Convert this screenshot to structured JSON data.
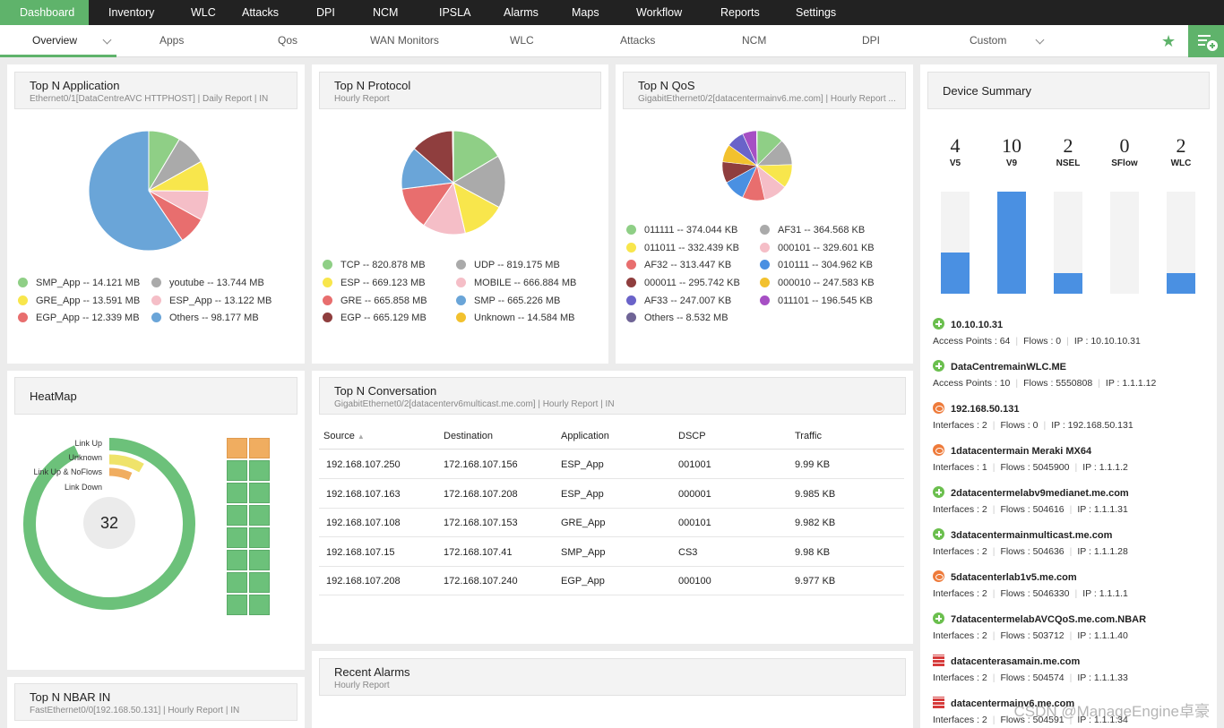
{
  "topnav": [
    "Dashboard",
    "Inventory",
    "WLC",
    "Attacks",
    "DPI",
    "NCM",
    "IPSLA",
    "Alarms",
    "Maps",
    "Workflow",
    "Reports",
    "Settings"
  ],
  "subnav": [
    "Overview",
    "Apps",
    "Qos",
    "WAN Monitors",
    "WLC",
    "Attacks",
    "NCM",
    "DPI",
    "Custom"
  ],
  "colors": {
    "accent": "#5fb36b",
    "topbar": "#222222",
    "bar_fill": "#4a90e2"
  },
  "top_app": {
    "title": "Top N Application",
    "subtitle": "Ethernet0/1[DataCentreAVC HTTPHOST] | Daily Report | IN",
    "chart_data": {
      "type": "pie",
      "labels": [
        "SMP_App",
        "youtube",
        "GRE_App",
        "ESP_App",
        "EGP_App",
        "Others"
      ],
      "values": [
        14.121,
        13.744,
        13.591,
        13.122,
        12.339,
        98.177
      ],
      "colors": [
        "#8fcf86",
        "#aaaaaa",
        "#f8e64c",
        "#f5bec7",
        "#e86e6e",
        "#6aa5d8"
      ]
    },
    "legend": [
      "SMP_App -- 14.121 MB",
      "youtube -- 13.744 MB",
      "GRE_App -- 13.591 MB",
      "ESP_App -- 13.122 MB",
      "EGP_App -- 12.339 MB",
      "Others -- 98.177 MB"
    ]
  },
  "top_protocol": {
    "title": "Top N Protocol",
    "subtitle": "Hourly Report",
    "chart_data": {
      "type": "pie",
      "labels": [
        "TCP",
        "UDP",
        "ESP",
        "MOBILE",
        "GRE",
        "SMP",
        "EGP",
        "Unknown"
      ],
      "values": [
        820.878,
        819.175,
        669.123,
        666.884,
        665.858,
        665.226,
        665.129,
        14.584
      ],
      "colors": [
        "#8fcf86",
        "#aaaaaa",
        "#f8e64c",
        "#f5bec7",
        "#e86e6e",
        "#6aa5d8",
        "#8f3e3e",
        "#f2c12e"
      ]
    },
    "legend": [
      "TCP -- 820.878 MB",
      "UDP -- 819.175 MB",
      "ESP -- 669.123 MB",
      "MOBILE -- 666.884 MB",
      "GRE -- 665.858 MB",
      "SMP -- 665.226 MB",
      "EGP -- 665.129 MB",
      "Unknown -- 14.584 MB"
    ]
  },
  "top_qos": {
    "title": "Top N QoS",
    "subtitle": "GigabitEthernet0/2[datacentermainv6.me.com] | Hourly Report ...",
    "chart_data": {
      "type": "pie",
      "labels": [
        "011111",
        "AF31",
        "011011",
        "000101",
        "AF32",
        "010111",
        "000011",
        "000010",
        "AF33",
        "011101",
        "Others"
      ],
      "values": [
        374.044,
        364.568,
        332.439,
        329.601,
        313.447,
        304.962,
        295.742,
        247.583,
        247.007,
        196.545,
        8.532
      ],
      "colors": [
        "#8fcf86",
        "#aaaaaa",
        "#f8e64c",
        "#f5bec7",
        "#e86e6e",
        "#4a90e2",
        "#8f3e3e",
        "#f2c12e",
        "#6a63c9",
        "#a64fc4",
        "#6f6496"
      ]
    },
    "legend": [
      "011111 -- 374.044 KB",
      "AF31 -- 364.568 KB",
      "011011 -- 332.439 KB",
      "000101 -- 329.601 KB",
      "AF32 -- 313.447 KB",
      "010111 -- 304.962 KB",
      "000011 -- 295.742 KB",
      "000010 -- 247.583 KB",
      "AF33 -- 247.007 KB",
      "011101 -- 196.545 KB",
      "Others -- 8.532 MB"
    ]
  },
  "device_summary": {
    "title": "Device Summary",
    "counts": [
      {
        "n": "4",
        "label": "V5",
        "fill": 0.4
      },
      {
        "n": "10",
        "label": "V9",
        "fill": 1.0
      },
      {
        "n": "2",
        "label": "NSEL",
        "fill": 0.2
      },
      {
        "n": "0",
        "label": "SFlow",
        "fill": 0.0
      },
      {
        "n": "2",
        "label": "WLC",
        "fill": 0.2
      }
    ],
    "devices": [
      {
        "icon": "plus",
        "name": "10.10.10.31",
        "meta": [
          "Access Points : 64",
          "Flows : 0",
          "IP : 10.10.10.31"
        ]
      },
      {
        "icon": "plus",
        "name": "DataCentremainWLC.ME",
        "meta": [
          "Access Points : 10",
          "Flows : 5550808",
          "IP : 1.1.1.12"
        ]
      },
      {
        "icon": "orange",
        "name": "192.168.50.131",
        "meta": [
          "Interfaces : 2",
          "Flows : 0",
          "IP : 192.168.50.131"
        ]
      },
      {
        "icon": "orange",
        "name": "1datacentermain Meraki MX64",
        "meta": [
          "Interfaces : 1",
          "Flows : 5045900",
          "IP : 1.1.1.2"
        ]
      },
      {
        "icon": "plus",
        "name": "2datacentermelabv9medianet.me.com",
        "meta": [
          "Interfaces : 2",
          "Flows : 504616",
          "IP : 1.1.1.31"
        ]
      },
      {
        "icon": "plus",
        "name": "3datacentermainmulticast.me.com",
        "meta": [
          "Interfaces : 2",
          "Flows : 504636",
          "IP : 1.1.1.28"
        ]
      },
      {
        "icon": "orange",
        "name": "5datacenterlab1v5.me.com",
        "meta": [
          "Interfaces : 2",
          "Flows : 5046330",
          "IP : 1.1.1.1"
        ]
      },
      {
        "icon": "plus",
        "name": "7datacentermelabAVCQoS.me.com.NBAR",
        "meta": [
          "Interfaces : 2",
          "Flows : 503712",
          "IP : 1.1.1.40"
        ]
      },
      {
        "icon": "fw",
        "name": "datacenterasamain.me.com",
        "meta": [
          "Interfaces : 2",
          "Flows : 504574",
          "IP : 1.1.1.33"
        ]
      },
      {
        "icon": "fw",
        "name": "datacentermainv6.me.com",
        "meta": [
          "Interfaces : 2",
          "Flows : 504591",
          "IP : 1.1.1.34"
        ]
      }
    ]
  },
  "heatmap": {
    "title": "HeatMap",
    "labels": [
      "Link Up",
      "Unknown",
      "Link Up & NoFlows",
      "Link Down"
    ],
    "center": "32",
    "chart_data": {
      "type": "donut",
      "labels": [
        "Link Up",
        "Unknown",
        "Link Up & NoFlows",
        "Link Down"
      ],
      "values": [
        29,
        2,
        1,
        0
      ],
      "colors": [
        "#6cc17a",
        "#efe36a",
        "#f0ad60",
        "#e86e6e"
      ]
    },
    "grid": [
      "o",
      "o",
      "g",
      "g",
      "g",
      "g",
      "g",
      "g",
      "g",
      "g",
      "g",
      "g",
      "g",
      "g",
      "g",
      "g"
    ]
  },
  "conversation": {
    "title": "Top N Conversation",
    "subtitle": "GigabitEthernet0/2[datacenterv6multicast.me.com] | Hourly Report | IN",
    "headers": [
      "Source",
      "Destination",
      "Application",
      "DSCP",
      "Traffic"
    ],
    "rows": [
      [
        "192.168.107.250",
        "172.168.107.156",
        "ESP_App",
        "001001",
        "9.99 KB"
      ],
      [
        "192.168.107.163",
        "172.168.107.208",
        "ESP_App",
        "000001",
        "9.985 KB"
      ],
      [
        "192.168.107.108",
        "172.168.107.153",
        "GRE_App",
        "000101",
        "9.982 KB"
      ],
      [
        "192.168.107.15",
        "172.168.107.41",
        "SMP_App",
        "CS3",
        "9.98 KB"
      ],
      [
        "192.168.107.208",
        "172.168.107.240",
        "EGP_App",
        "000100",
        "9.977 KB"
      ]
    ]
  },
  "nbar": {
    "title": "Top N NBAR IN",
    "subtitle": "FastEthernet0/0[192.168.50.131] | Hourly Report | IN"
  },
  "alarms": {
    "title": "Recent Alarms",
    "subtitle": "Hourly Report"
  },
  "watermark": "CSDN @ManageEngine卓豪"
}
